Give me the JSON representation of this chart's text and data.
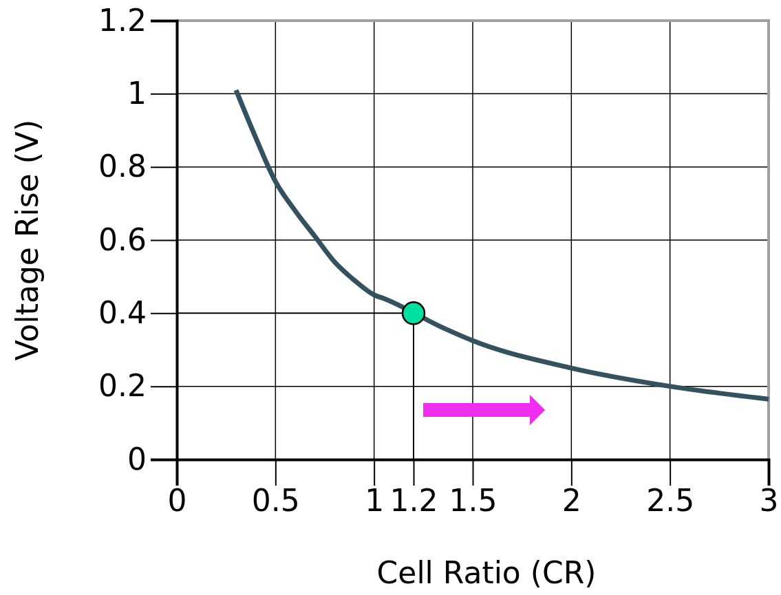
{
  "chart_data": {
    "type": "line",
    "xlabel": "Cell Ratio (CR)",
    "ylabel": "Voltage Rise (V)",
    "xlim": [
      0,
      3
    ],
    "ylim": [
      0,
      1.2
    ],
    "xticks": [
      0,
      0.5,
      1,
      1.2,
      1.5,
      2,
      2.5,
      3
    ],
    "yticks": [
      0,
      0.2,
      0.4,
      0.6,
      0.8,
      1,
      1.2
    ],
    "grid": true,
    "series": [
      {
        "color": "#34515f",
        "x": [
          0.3,
          0.4,
          0.5,
          0.6,
          0.7,
          0.8,
          0.9,
          1,
          1.05,
          1.35,
          1.5,
          2,
          2.5,
          3
        ],
        "values": [
          1.01,
          0.88,
          0.76,
          0.68,
          0.61,
          0.54,
          0.49,
          0.45,
          0.44,
          0.36,
          0.325,
          0.25,
          0.2,
          0.165
        ]
      },
      {
        "type": "scatter",
        "color": "#00e0a0",
        "x": [
          1.2
        ],
        "values": [
          0.4
        ],
        "marker": "circle"
      }
    ],
    "ref_lines": [
      {
        "axis": "x",
        "value": 1.2,
        "color": "#000000"
      },
      {
        "axis": "y",
        "value": 0.4,
        "color": "#000000"
      }
    ]
  }
}
